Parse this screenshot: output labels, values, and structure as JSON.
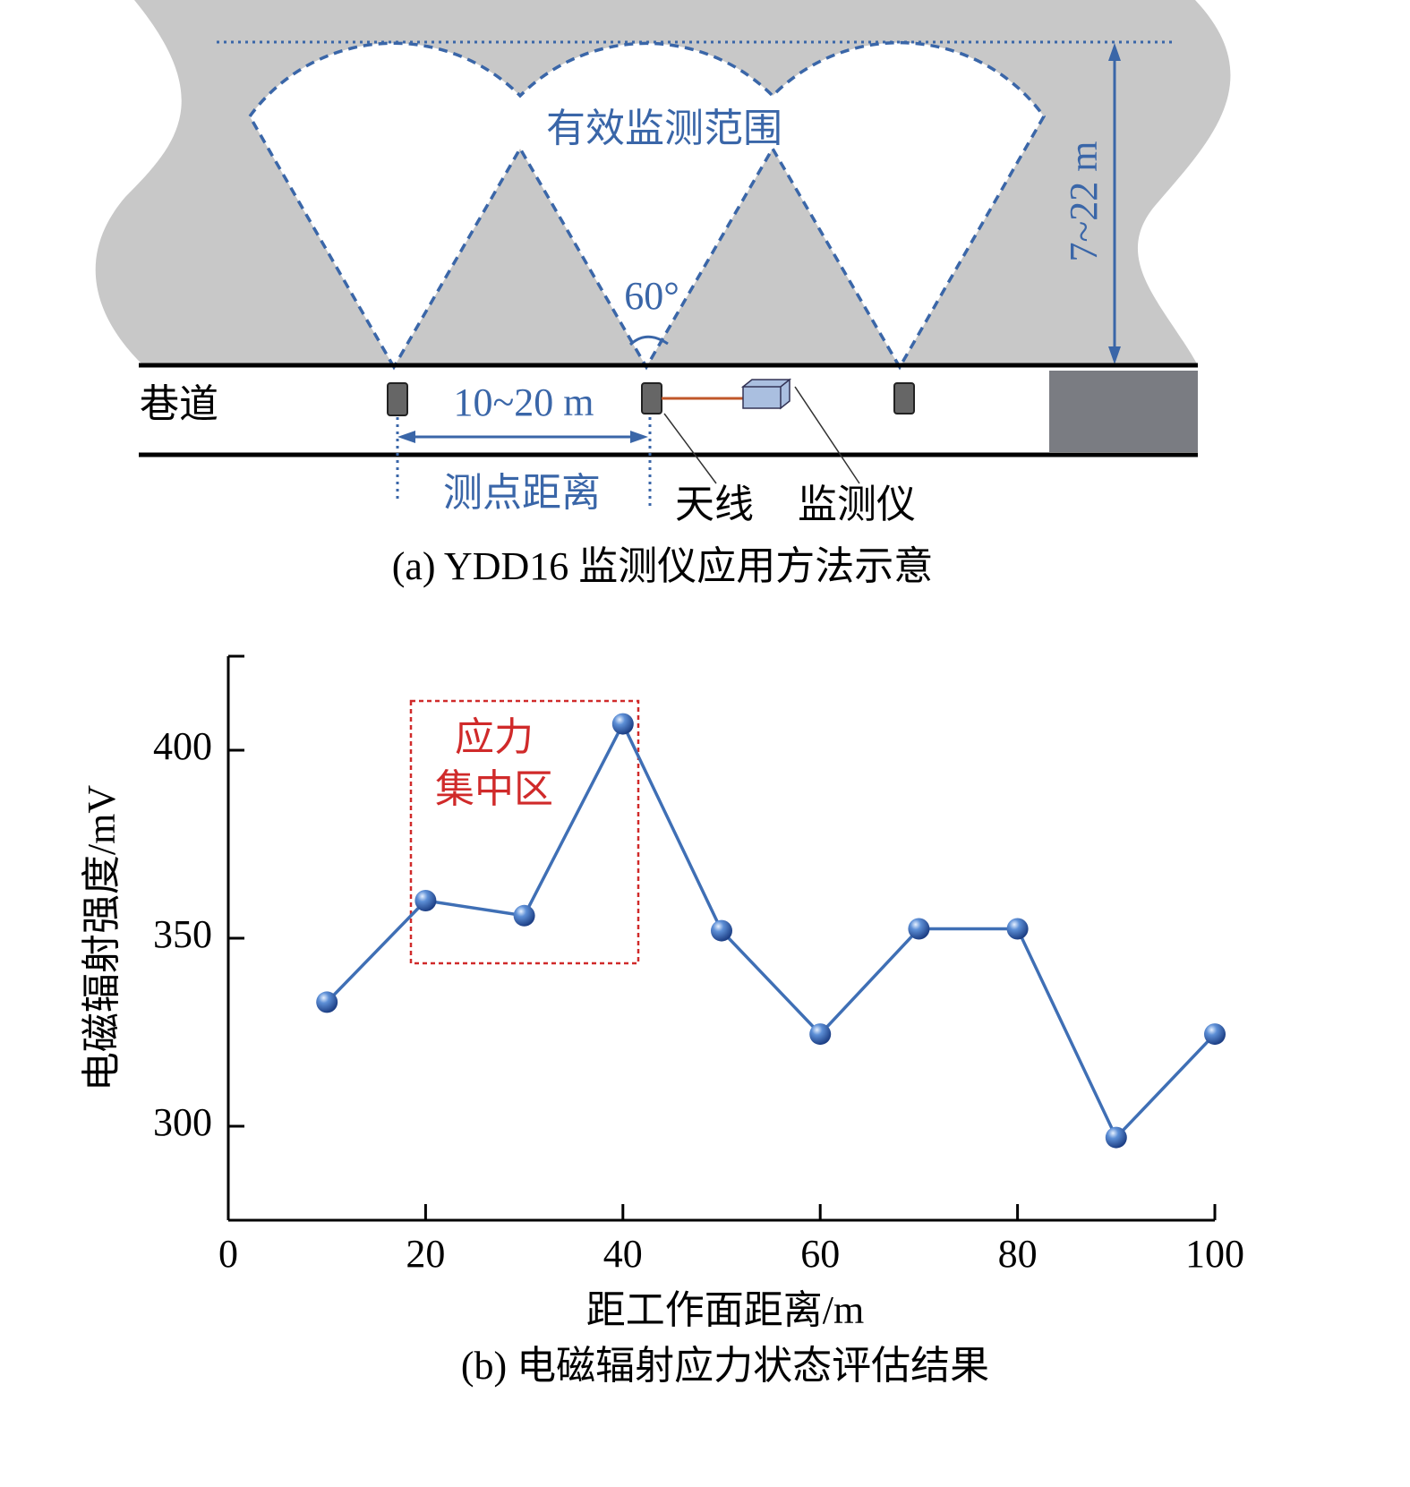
{
  "diagram": {
    "range_label": "有效监测范围",
    "height_label": "7~22 m",
    "angle_label": "60°",
    "tunnel_label": "巷道",
    "spacing_value": "10~20 m",
    "spacing_label": "测点距离",
    "antenna_label": "天线",
    "monitor_label": "监测仪",
    "caption": "(a) YDD16 监测仪应用方法示意"
  },
  "chart_data": {
    "type": "line",
    "x": [
      10,
      20,
      30,
      40,
      50,
      60,
      70,
      80,
      90,
      100
    ],
    "values": [
      333,
      360,
      356,
      407,
      352,
      324.5,
      352.5,
      352.5,
      297,
      324.5
    ],
    "color": "#3f6fb5",
    "xlim": [
      0,
      100
    ],
    "xticks": [
      0,
      20,
      40,
      60,
      80,
      100
    ],
    "ylim": [
      275,
      425
    ],
    "yticks": [
      300,
      350,
      400
    ],
    "xlabel": "距工作面距离/m",
    "ylabel": "电磁辐射强度/mV",
    "annotation": [
      "应力",
      "集中区"
    ],
    "caption": "(b) 电磁辐射应力状态评估结果"
  }
}
